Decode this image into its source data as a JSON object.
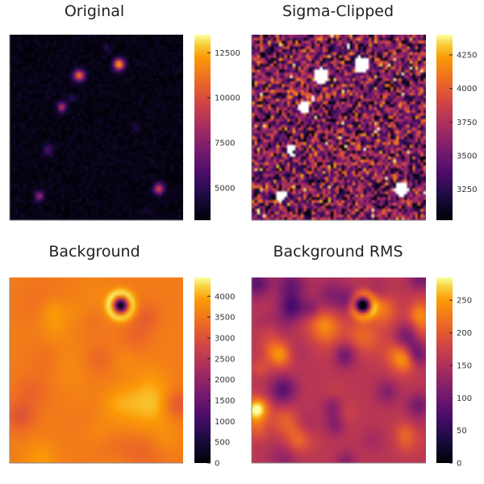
{
  "chart_data": [
    {
      "type": "heatmap",
      "title": "Original",
      "colormap": "inferno",
      "colorbar": {
        "range": [
          3200,
          13500
        ],
        "ticks": [
          12500,
          10000,
          7500,
          5000
        ]
      },
      "background_level": 3550,
      "noise": 230,
      "sources": [
        {
          "x": 0.63,
          "y": 0.84,
          "amp": 9000,
          "sigma": 0.022
        },
        {
          "x": 0.4,
          "y": 0.78,
          "amp": 7500,
          "sigma": 0.022
        },
        {
          "x": 0.3,
          "y": 0.61,
          "amp": 5500,
          "sigma": 0.018
        },
        {
          "x": 0.86,
          "y": 0.17,
          "amp": 6500,
          "sigma": 0.02
        },
        {
          "x": 0.17,
          "y": 0.13,
          "amp": 4500,
          "sigma": 0.018
        },
        {
          "x": 0.22,
          "y": 0.38,
          "amp": 2500,
          "sigma": 0.02
        },
        {
          "x": 0.56,
          "y": 0.93,
          "amp": 1500,
          "sigma": 0.015
        },
        {
          "x": 0.36,
          "y": 0.66,
          "amp": 1200,
          "sigma": 0.015
        },
        {
          "x": 0.73,
          "y": 0.5,
          "amp": 900,
          "sigma": 0.015
        },
        {
          "x": 0.8,
          "y": 0.05,
          "amp": 700,
          "sigma": 0.015
        }
      ]
    },
    {
      "type": "heatmap",
      "title": "Sigma-Clipped",
      "colormap": "inferno",
      "colorbar": {
        "range": [
          3020,
          4400
        ],
        "ticks": [
          4250,
          4000,
          3750,
          3500,
          3250
        ]
      },
      "clip_level": 4400
    },
    {
      "type": "heatmap",
      "title": "Background",
      "colormap": "inferno",
      "colorbar": {
        "range": [
          0,
          4450
        ],
        "ticks": [
          4000,
          3500,
          3000,
          2500,
          2000,
          1500,
          1000,
          500,
          0
        ]
      },
      "level": 3550,
      "hole": {
        "x": 0.64,
        "y": 0.85,
        "sigma": 0.045
      }
    },
    {
      "type": "heatmap",
      "title": "Background RMS",
      "colormap": "inferno",
      "colorbar": {
        "range": [
          0,
          285
        ],
        "ticks": [
          250,
          200,
          150,
          100,
          50,
          0
        ]
      },
      "hole": {
        "x": 0.64,
        "y": 0.85,
        "sigma": 0.045
      }
    }
  ]
}
